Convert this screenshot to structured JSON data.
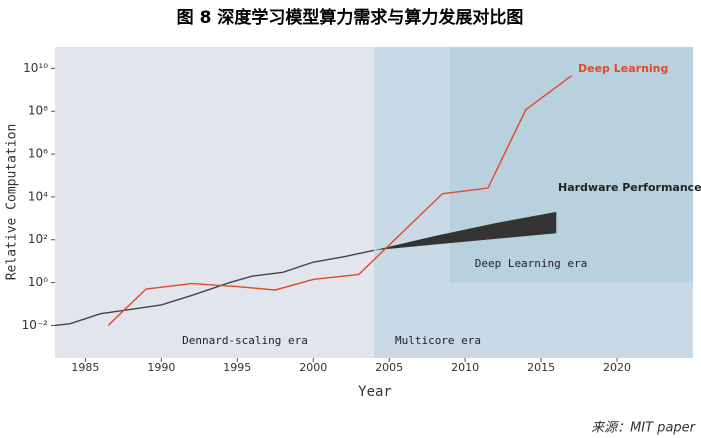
{
  "chart_data": {
    "type": "line",
    "title": "图 8 深度学习模型算力需求与算力发展对比图",
    "source": "来源：MIT paper",
    "x_label": "Year",
    "y_label": "Relative Computation",
    "log_y": true,
    "xlim": [
      1983,
      2025
    ],
    "xticks": [
      1985,
      1990,
      1995,
      2000,
      2005,
      2010,
      2015,
      2020
    ],
    "ylim": [
      0.0003,
      100000000000
    ],
    "yticks": [
      {
        "value": 0.01,
        "label": "10⁻²"
      },
      {
        "value": 1,
        "label": "10⁰"
      },
      {
        "value": 100,
        "label": "10²"
      },
      {
        "value": 10000,
        "label": "10⁴"
      },
      {
        "value": 1000000,
        "label": "10⁶"
      },
      {
        "value": 100000000,
        "label": "10⁸"
      },
      {
        "value": 10000000000,
        "label": "10¹⁰"
      }
    ],
    "regions": [
      {
        "name": "Dennard-scaling era",
        "x": [
          1983,
          2004
        ],
        "color": "#e2e5ee"
      },
      {
        "name": "Multicore era",
        "x": [
          2004,
          2025
        ],
        "color": "#c9d9e5"
      },
      {
        "name": "Deep Learning era",
        "x": [
          2009,
          2025
        ],
        "y": [
          1,
          100000000000
        ],
        "color": "#b9d1de"
      }
    ],
    "series": [
      {
        "name": "Hardware Performance",
        "color": "#454545",
        "x": [
          1983,
          1984,
          1986,
          1987.5,
          1990,
          1992,
          1994.5,
          1996,
          1998,
          2000,
          2002,
          2004
        ],
        "values": [
          0.01,
          0.012,
          0.035,
          0.05,
          0.09,
          0.25,
          1,
          2,
          3,
          9,
          16,
          32
        ],
        "band": {
          "x": [
            2004,
            2008,
            2012,
            2016
          ],
          "lower": [
            32,
            60,
            110,
            200
          ],
          "upper": [
            32,
            150,
            600,
            2000
          ],
          "color": "#333333"
        }
      },
      {
        "name": "Deep Learning",
        "color": "#e04a2a",
        "x": [
          1986.5,
          1989,
          1992,
          1995,
          1997.5,
          2000,
          2003,
          2008.5,
          2011.5,
          2014,
          2017
        ],
        "values": [
          0.01,
          0.5,
          0.9,
          0.65,
          0.45,
          1.4,
          2.4,
          14000,
          26000,
          120000000,
          4500000000
        ]
      }
    ]
  }
}
